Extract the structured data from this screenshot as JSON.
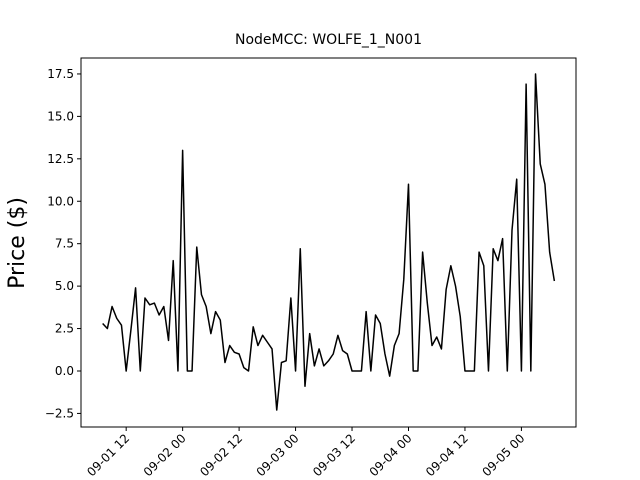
{
  "chart_data": {
    "type": "line",
    "title": "NodeMCC: WOLFE_1_N001",
    "y_label": "Price ($)",
    "x": [
      "09-01 07",
      "09-01 08",
      "09-01 09",
      "09-01 10",
      "09-01 11",
      "09-01 12",
      "09-01 13",
      "09-01 14",
      "09-01 15",
      "09-01 16",
      "09-01 17",
      "09-01 18",
      "09-01 19",
      "09-01 20",
      "09-01 21",
      "09-01 22",
      "09-01 23",
      "09-02 00",
      "09-02 01",
      "09-02 02",
      "09-02 03",
      "09-02 04",
      "09-02 05",
      "09-02 06",
      "09-02 07",
      "09-02 08",
      "09-02 09",
      "09-02 10",
      "09-02 11",
      "09-02 12",
      "09-02 13",
      "09-02 14",
      "09-02 15",
      "09-02 16",
      "09-02 17",
      "09-02 18",
      "09-02 19",
      "09-02 20",
      "09-02 21",
      "09-02 22",
      "09-02 23",
      "09-03 00",
      "09-03 01",
      "09-03 02",
      "09-03 03",
      "09-03 04",
      "09-03 05",
      "09-03 06",
      "09-03 07",
      "09-03 08",
      "09-03 09",
      "09-03 10",
      "09-03 11",
      "09-03 12",
      "09-03 13",
      "09-03 14",
      "09-03 15",
      "09-03 16",
      "09-03 17",
      "09-03 18",
      "09-03 19",
      "09-03 20",
      "09-03 21",
      "09-03 22",
      "09-03 23",
      "09-04 00",
      "09-04 01",
      "09-04 02",
      "09-04 03",
      "09-04 04",
      "09-04 05",
      "09-04 06",
      "09-04 07",
      "09-04 08",
      "09-04 09",
      "09-04 10",
      "09-04 11",
      "09-04 12",
      "09-04 13",
      "09-04 14",
      "09-04 15",
      "09-04 16",
      "09-04 17",
      "09-04 18",
      "09-04 19",
      "09-04 20",
      "09-04 21",
      "09-04 22",
      "09-04 23",
      "09-05 00",
      "09-05 01",
      "09-05 02",
      "09-05 03",
      "09-05 04",
      "09-05 05",
      "09-05 06",
      "09-05 07"
    ],
    "series": [
      {
        "name": "WOLFE_1_N001",
        "color": "#000000",
        "values": [
          2.8,
          2.5,
          3.8,
          3.1,
          2.7,
          0,
          2.4,
          4.9,
          0,
          4.3,
          3.9,
          4.0,
          3.3,
          3.8,
          1.8,
          6.5,
          0,
          13.0,
          0,
          0,
          7.3,
          4.5,
          3.8,
          2.2,
          3.5,
          3.0,
          0.5,
          1.5,
          1.1,
          1.0,
          0.2,
          0,
          2.6,
          1.5,
          2.1,
          1.7,
          1.3,
          -2.3,
          0.5,
          0.6,
          4.3,
          0,
          7.2,
          -0.9,
          2.2,
          0.3,
          1.3,
          0.3,
          0.6,
          1.0,
          2.1,
          1.2,
          1.0,
          0,
          0,
          0,
          3.5,
          0,
          3.3,
          2.8,
          1.0,
          -0.3,
          1.5,
          2.2,
          5.4,
          11.0,
          0,
          0,
          7.0,
          4.0,
          1.5,
          2.0,
          1.3,
          4.8,
          6.2,
          5.0,
          3.2,
          0,
          0,
          0,
          7.0,
          6.2,
          0,
          7.2,
          6.5,
          7.8,
          0,
          8.3,
          11.3,
          0,
          16.9,
          0,
          17.5,
          12.2,
          11.0,
          7.0,
          5.3
        ]
      }
    ],
    "xlim": [
      "09-01 02:24",
      "09-05 11:36"
    ],
    "xticks": [
      "09-01 12",
      "09-02 00",
      "09-02 12",
      "09-03 00",
      "09-03 12",
      "09-04 00",
      "09-04 12",
      "09-05 00"
    ],
    "ylim": [
      -3.3,
      18.44
    ],
    "yticks": [
      {
        "value": -2.5,
        "label": "−2.5"
      },
      {
        "value": 0,
        "label": "0.0"
      },
      {
        "value": 2.5,
        "label": "2.5"
      },
      {
        "value": 5,
        "label": "5.0"
      },
      {
        "value": 7.5,
        "label": "7.5"
      },
      {
        "value": 10,
        "label": "10.0"
      },
      {
        "value": 12.5,
        "label": "12.5"
      },
      {
        "value": 15,
        "label": "15.0"
      },
      {
        "value": 17.5,
        "label": "17.5"
      }
    ],
    "grid": false
  }
}
